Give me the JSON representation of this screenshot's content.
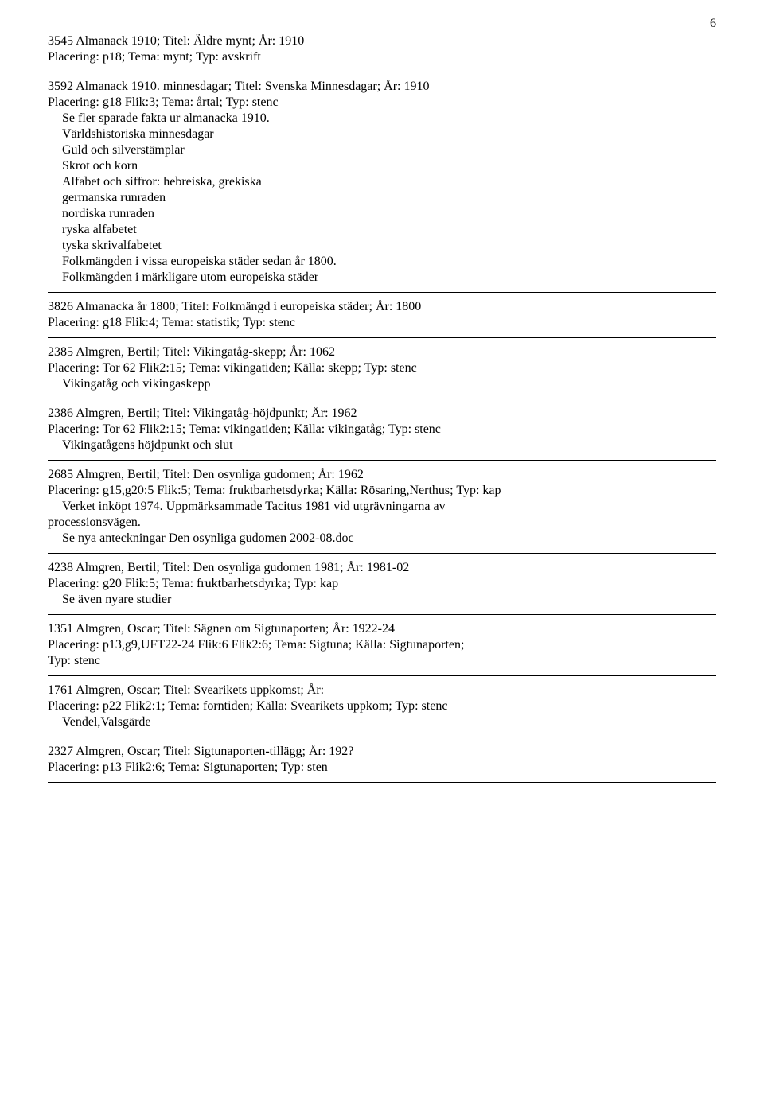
{
  "page_number": "6",
  "entries": [
    {
      "header": "3545  Almanack 1910;   Titel: Äldre mynt;   År: 1910",
      "place": "Placering: p18;  Tema: mynt;  Typ: avskrift",
      "body": []
    },
    {
      "header": "3592  Almanack 1910. minnesdagar;   Titel: Svenska Minnesdagar;   År: 1910",
      "place": "Placering: g18  Flik:3;  Tema: årtal;  Typ: stenc",
      "body": [
        "Se fler sparade fakta ur almanacka 1910.",
        "Världshistoriska minnesdagar",
        "Guld och silverstämplar",
        "Skrot och korn",
        "Alfabet och siffror: hebreiska, grekiska",
        "germanska runraden",
        "nordiska runraden",
        "ryska alfabetet",
        "tyska skrivalfabetet",
        "Folkmängden i vissa europeiska städer sedan år 1800.",
        "Folkmängden i märkligare utom europeiska städer"
      ]
    },
    {
      "header": "3826  Almanacka år 1800;   Titel: Folkmängd i europeiska städer;   År: 1800",
      "place": "Placering: g18  Flik:4;  Tema: statistik;  Typ: stenc",
      "body": []
    },
    {
      "header": "2385  Almgren, Bertil;   Titel: Vikingatåg-skepp;   År: 1062",
      "place": "Placering: Tor 62  Flik2:15;  Tema: vikingatiden;  Källa: skepp;  Typ: stenc",
      "body": [
        "Vikingatåg och vikingaskepp"
      ]
    },
    {
      "header": "2386  Almgren, Bertil;   Titel: Vikingatåg-höjdpunkt;   År: 1962",
      "place": "Placering: Tor 62  Flik2:15;  Tema: vikingatiden;  Källa: vikingatåg;  Typ: stenc",
      "body": [
        "Vikingatågens höjdpunkt och slut"
      ]
    },
    {
      "header": "2685  Almgren, Bertil;   Titel: Den osynliga gudomen;   År: 1962",
      "place": "Placering: g15,g20:5  Flik:5;  Tema: fruktbarhetsdyrka;  Källa: Rösaring,Nerthus;  Typ: kap",
      "body": [
        "Verket inköpt 1974. Uppmärksammade Tacitus 1981 vid utgrävningarna av",
        "processionsvägen.",
        "Se nya anteckningar Den osynliga gudomen 2002-08.doc"
      ]
    },
    {
      "header": "4238  Almgren, Bertil;   Titel: Den osynliga gudomen 1981;   År: 1981-02",
      "place": "Placering: g20  Flik:5;  Tema: fruktbarhetsdyrka;  Typ: kap",
      "body": [
        "Se även nyare studier"
      ]
    },
    {
      "header": "1351  Almgren, Oscar;   Titel: Sägnen om Sigtunaporten;   År: 1922-24",
      "place": "Placering: p13,g9,UFT22-24  Flik:6  Flik2:6;  Tema: Sigtuna;  Källa: Sigtunaporten;",
      "place2": "Typ: stenc",
      "body": []
    },
    {
      "header": "1761  Almgren, Oscar;   Titel: Svearikets uppkomst;   År:",
      "place": "Placering: p22  Flik2:1;  Tema: forntiden;  Källa: Svearikets uppkom;  Typ: stenc",
      "body": [
        "Vendel,Valsgärde"
      ]
    },
    {
      "header": "2327  Almgren, Oscar;   Titel: Sigtunaporten-tillägg;   År: 192?",
      "place": "Placering: p13  Flik2:6;  Tema: Sigtunaporten;  Typ: sten",
      "body": []
    }
  ]
}
